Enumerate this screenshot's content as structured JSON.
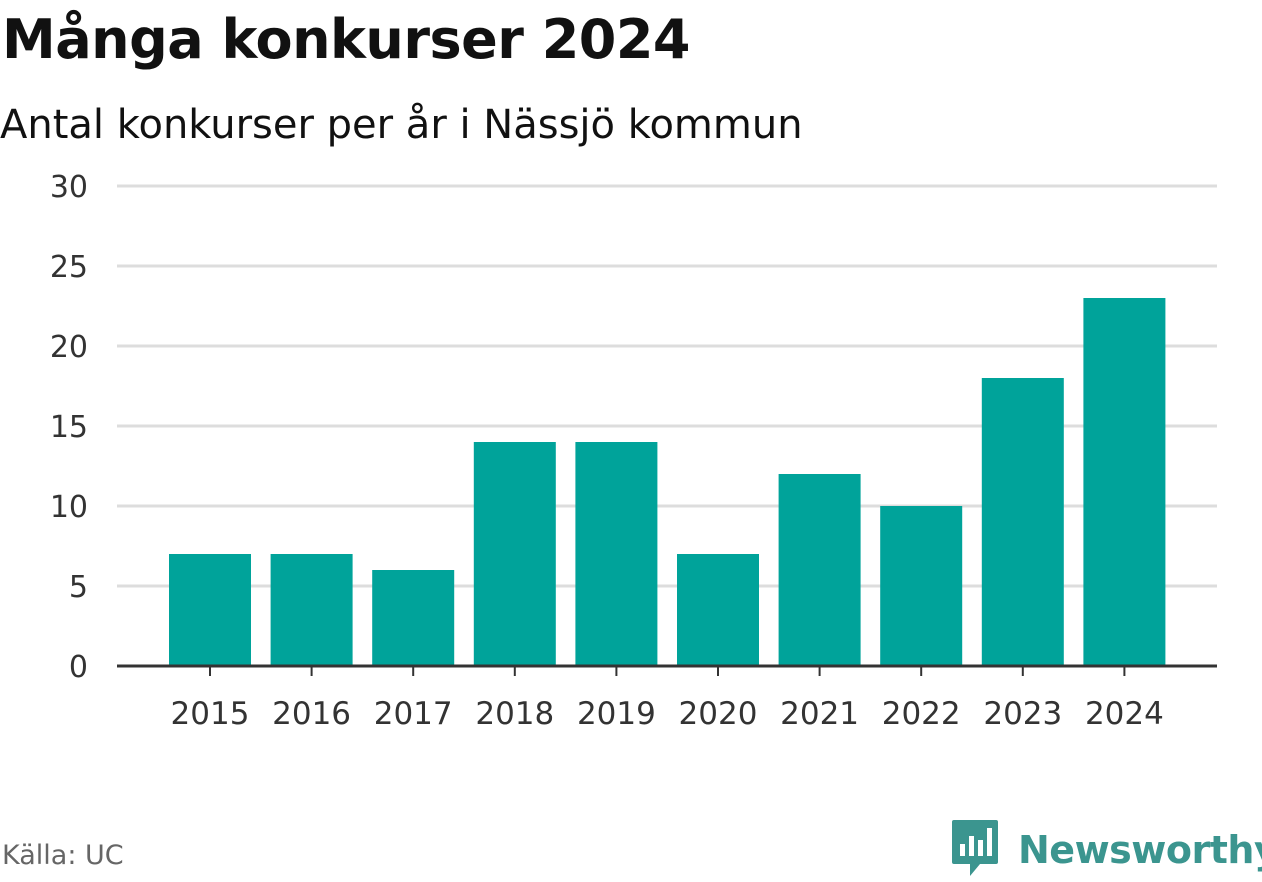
{
  "title": "Många konkurser 2024",
  "subtitle": "Antal konkurser per år i Nässjö kommun",
  "source": "Källa: UC",
  "brand": {
    "name": "Newsworthy",
    "logo_icon": "newsworthy-logo-icon",
    "color": "#3b958f"
  },
  "colors": {
    "bar": "#00a39a",
    "grid": "#dddddd",
    "axis": "#333333",
    "text": "#333333"
  },
  "chart_data": {
    "type": "bar",
    "categories": [
      "2015",
      "2016",
      "2017",
      "2018",
      "2019",
      "2020",
      "2021",
      "2022",
      "2023",
      "2024"
    ],
    "values": [
      7,
      7,
      6,
      14,
      14,
      7,
      12,
      10,
      18,
      23
    ],
    "ylim": [
      0,
      30
    ],
    "yticks": [
      "0",
      "5",
      "10",
      "15",
      "20",
      "25",
      "30"
    ],
    "grid": true,
    "xlabel": "",
    "ylabel": ""
  }
}
